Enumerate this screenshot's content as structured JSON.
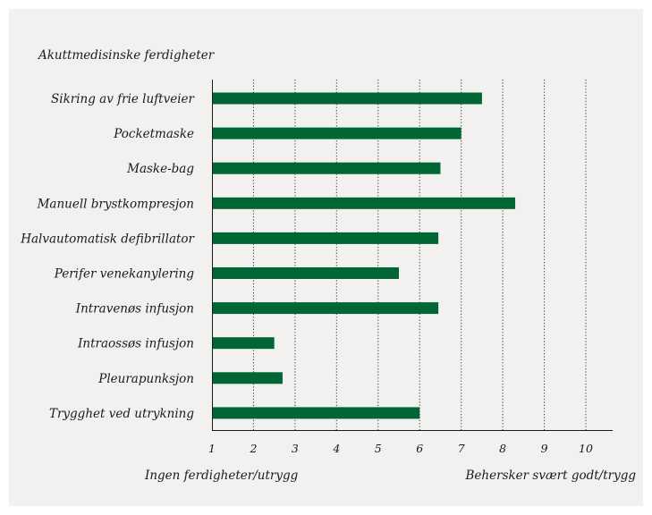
{
  "chart_data": {
    "type": "bar",
    "orientation": "horizontal",
    "title": "Akuttmedisinske ferdigheter",
    "categories": [
      "Sikring av frie luftveier",
      "Pocketmaske",
      "Maske-bag",
      "Manuell brystkompresjon",
      "Halvautomatisk defibrillator",
      "Perifer venekanylering",
      "Intravenøs infusjon",
      "Intraossøs infusjon",
      "Pleurapunksjon",
      "Trygghet ved utrykning"
    ],
    "values": [
      7.5,
      7.0,
      6.5,
      8.3,
      6.45,
      5.5,
      6.45,
      2.5,
      2.7,
      6.0
    ],
    "xlim": [
      1,
      10
    ],
    "xticks": [
      "1",
      "2",
      "3",
      "4",
      "5",
      "6",
      "7",
      "8",
      "9",
      "10"
    ],
    "min_label": "Ingen ferdigheter/utrygg",
    "max_label": "Behersker svært godt/trygg",
    "grid": "vertical-dotted",
    "bar_color": "#006633"
  }
}
